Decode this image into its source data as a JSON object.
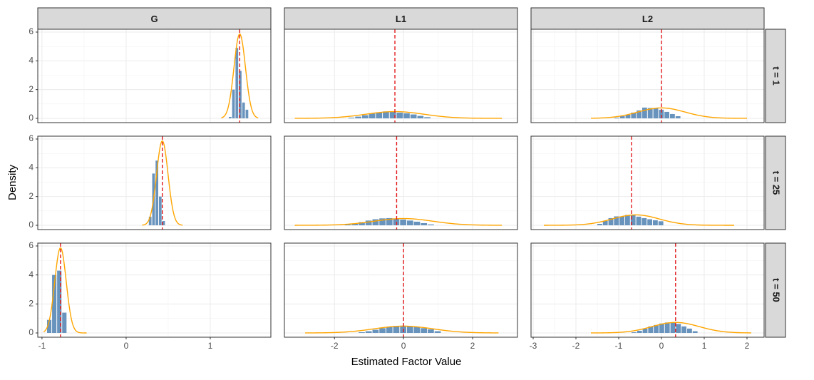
{
  "chart_data": {
    "type": "histogram-facet",
    "xlabel": "Estimated Factor Value",
    "ylabel": "Density",
    "columns": [
      "G",
      "L1",
      "L2"
    ],
    "rows": [
      "t = 1",
      "t = 25",
      "t = 50"
    ],
    "ylim": [
      0,
      6
    ],
    "y_ticks": [
      0,
      2,
      4,
      6
    ],
    "scales": "free_x per column, shared y",
    "grid": true,
    "colors": {
      "bar": "#6793bd",
      "curve": "#ffa500",
      "reference_line": "#e31a1c",
      "strip": "#d9d9d9"
    },
    "column_axes": [
      {
        "xlim": [
          -1.05,
          1.72
        ],
        "ticks": [
          -1,
          0,
          1
        ]
      },
      {
        "xlim": [
          -3.45,
          3.3
        ],
        "ticks": [
          -2,
          0,
          2
        ]
      },
      {
        "xlim": [
          -3.05,
          2.4
        ],
        "ticks": [
          -3,
          -2,
          -1,
          0,
          1,
          2
        ]
      }
    ],
    "panels": [
      {
        "row": "t = 1",
        "column": "G",
        "true_value": 1.35,
        "curve": {
          "mean": 1.35,
          "sd": 0.068,
          "from": 1.13,
          "to": 1.57
        },
        "histogram": {
          "bin_start": 1.22,
          "bin_width": 0.04,
          "density": [
            0.1,
            2.0,
            4.9,
            3.3,
            1.1,
            0.6
          ]
        }
      },
      {
        "row": "t = 1",
        "column": "L1",
        "true_value": -0.25,
        "curve": {
          "mean": -0.25,
          "sd": 0.85,
          "from": -3.15,
          "to": 2.85
        },
        "histogram": {
          "bin_start": -1.6,
          "bin_width": 0.2,
          "density": [
            0.05,
            0.12,
            0.22,
            0.33,
            0.42,
            0.48,
            0.46,
            0.4,
            0.35,
            0.27,
            0.17,
            0.08
          ]
        }
      },
      {
        "row": "t = 1",
        "column": "L2",
        "true_value": 0.0,
        "curve": {
          "mean": 0.0,
          "sd": 0.55,
          "from": -1.65,
          "to": 2.0
        },
        "histogram": {
          "bin_start": -1.1,
          "bin_width": 0.13,
          "density": [
            0.05,
            0.15,
            0.25,
            0.4,
            0.55,
            0.75,
            0.72,
            0.7,
            0.6,
            0.45,
            0.3,
            0.15
          ]
        }
      },
      {
        "row": "t = 25",
        "column": "G",
        "true_value": 0.43,
        "curve": {
          "mean": 0.43,
          "sd": 0.068,
          "from": 0.19,
          "to": 0.67
        },
        "histogram": {
          "bin_start": 0.27,
          "bin_width": 0.04,
          "density": [
            0.6,
            3.6,
            4.5,
            2.0,
            0.3
          ]
        }
      },
      {
        "row": "t = 25",
        "column": "L1",
        "true_value": -0.2,
        "curve": {
          "mean": 0.0,
          "sd": 0.85,
          "from": -3.15,
          "to": 2.85
        },
        "histogram": {
          "bin_start": -1.7,
          "bin_width": 0.2,
          "density": [
            0.05,
            0.12,
            0.22,
            0.33,
            0.42,
            0.48,
            0.5,
            0.46,
            0.4,
            0.33,
            0.25,
            0.15,
            0.06
          ]
        }
      },
      {
        "row": "t = 25",
        "column": "L2",
        "true_value": -0.7,
        "curve": {
          "mean": -0.6,
          "sd": 0.55,
          "from": -2.75,
          "to": 1.7
        },
        "histogram": {
          "bin_start": -1.5,
          "bin_width": 0.13,
          "density": [
            0.1,
            0.3,
            0.5,
            0.62,
            0.62,
            0.72,
            0.7,
            0.6,
            0.5,
            0.42,
            0.35,
            0.28
          ]
        }
      },
      {
        "row": "t = 50",
        "column": "G",
        "true_value": -0.78,
        "curve": {
          "mean": -0.78,
          "sd": 0.068,
          "from": -0.98,
          "to": -0.47
        },
        "histogram": {
          "bin_start": -0.94,
          "bin_width": 0.06,
          "density": [
            0.9,
            4.0,
            4.3,
            1.4
          ]
        }
      },
      {
        "row": "t = 50",
        "column": "L1",
        "true_value": 0.0,
        "curve": {
          "mean": 0.0,
          "sd": 0.85,
          "from": -2.85,
          "to": 2.75
        },
        "histogram": {
          "bin_start": -1.3,
          "bin_width": 0.2,
          "density": [
            0.05,
            0.12,
            0.22,
            0.33,
            0.42,
            0.48,
            0.5,
            0.46,
            0.4,
            0.33,
            0.25,
            0.12
          ]
        }
      },
      {
        "row": "t = 50",
        "column": "L2",
        "true_value": 0.33,
        "curve": {
          "mean": 0.33,
          "sd": 0.55,
          "from": -1.65,
          "to": 2.1
        },
        "histogram": {
          "bin_start": -0.7,
          "bin_width": 0.13,
          "density": [
            0.05,
            0.15,
            0.3,
            0.45,
            0.55,
            0.65,
            0.72,
            0.7,
            0.62,
            0.45,
            0.3,
            0.12
          ]
        }
      }
    ]
  }
}
